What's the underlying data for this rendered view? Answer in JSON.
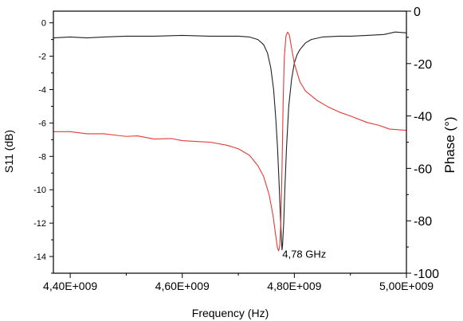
{
  "chart_data": {
    "type": "line",
    "xlabel": "Frequency (Hz)",
    "ylabel_left": "S11 (dB)",
    "ylabel_right": "Phase (°)",
    "xlim": [
      4370000000.0,
      5000000000.0
    ],
    "ylim_left": [
      -15,
      0.7
    ],
    "ylim_right": [
      -100,
      0
    ],
    "x_ticks": [
      4400000000.0,
      4600000000.0,
      4800000000.0,
      5000000000.0
    ],
    "x_tick_labels": [
      "4,40E+009",
      "4,60E+009",
      "4,80E+009",
      "5,00E+009"
    ],
    "y_left_ticks": [
      0,
      -2,
      -4,
      -6,
      -8,
      -10,
      -12,
      -14
    ],
    "y_left_tick_labels": [
      "0",
      "-2",
      "-4",
      "-6",
      "-8",
      "-10",
      "-12",
      "-14"
    ],
    "y_right_ticks": [
      0,
      -20,
      -40,
      -60,
      -80,
      -100
    ],
    "y_right_tick_labels": [
      "0",
      "-20",
      "-40",
      "-60",
      "-80",
      "-100"
    ],
    "grid": false,
    "legend": "none",
    "annotation": {
      "text": "4,78 GHz",
      "x": 4780000000.0,
      "y": -13.5
    },
    "series": [
      {
        "axis": "left",
        "color": "#222222",
        "x": [
          4370000000.0,
          4400000000.0,
          4430000000.0,
          4460000000.0,
          4500000000.0,
          4550000000.0,
          4600000000.0,
          4650000000.0,
          4700000000.0,
          4720000000.0,
          4735000000.0,
          4745000000.0,
          4752000000.0,
          4758000000.0,
          4763000000.0,
          4767000000.0,
          4770000000.0,
          4773000000.0,
          4775000000.0,
          4777000000.0,
          4778000000.0,
          4779000000.0,
          4781000000.0,
          4783000000.0,
          4786000000.0,
          4790000000.0,
          4795000000.0,
          4800000000.0,
          4805000000.0,
          4810000000.0,
          4820000000.0,
          4830000000.0,
          4850000000.0,
          4880000000.0,
          4900000000.0,
          4930000000.0,
          4960000000.0,
          4980000000.0,
          5000000000.0
        ],
        "values": [
          -0.9,
          -0.85,
          -0.9,
          -0.85,
          -0.8,
          -0.8,
          -0.75,
          -0.8,
          -0.8,
          -0.85,
          -1.0,
          -1.3,
          -1.8,
          -2.7,
          -4.0,
          -5.8,
          -7.5,
          -9.8,
          -11.5,
          -13.0,
          -13.6,
          -13.3,
          -12.0,
          -10.0,
          -7.5,
          -5.0,
          -3.4,
          -2.4,
          -1.9,
          -1.6,
          -1.2,
          -1.0,
          -0.85,
          -0.8,
          -0.8,
          -0.75,
          -0.7,
          -0.55,
          -0.6
        ]
      },
      {
        "axis": "right",
        "color": "#e53935",
        "x": [
          4370000000.0,
          4400000000.0,
          4430000000.0,
          4460000000.0,
          4480000000.0,
          4500000000.0,
          4520000000.0,
          4550000000.0,
          4580000000.0,
          4600000000.0,
          4630000000.0,
          4650000000.0,
          4680000000.0,
          4700000000.0,
          4720000000.0,
          4735000000.0,
          4745000000.0,
          4755000000.0,
          4762000000.0,
          4767000000.0,
          4770000000.0,
          4772000000.0,
          4774000000.0,
          4776000000.0,
          4778000000.0,
          4780000000.0,
          4782000000.0,
          4785000000.0,
          4788000000.0,
          4791000000.0,
          4795000000.0,
          4800000000.0,
          4810000000.0,
          4820000000.0,
          4840000000.0,
          4860000000.0,
          4880000000.0,
          4900000000.0,
          4930000000.0,
          4950000000.0,
          4970000000.0,
          5000000000.0
        ],
        "values": [
          -46.0,
          -46.0,
          -46.8,
          -46.8,
          -47.3,
          -47.8,
          -47.6,
          -48.8,
          -48.6,
          -49.4,
          -49.8,
          -50.0,
          -51.2,
          -52.5,
          -55.0,
          -59.0,
          -63.0,
          -70.0,
          -78.0,
          -86.0,
          -90.5,
          -91.5,
          -89.5,
          -80.0,
          -60.0,
          -35.0,
          -18.0,
          -9.5,
          -8.0,
          -9.0,
          -14.0,
          -20.0,
          -27.0,
          -30.5,
          -34.0,
          -36.5,
          -38.5,
          -40.0,
          -42.5,
          -43.5,
          -45.0,
          -45.5
        ]
      }
    ]
  }
}
